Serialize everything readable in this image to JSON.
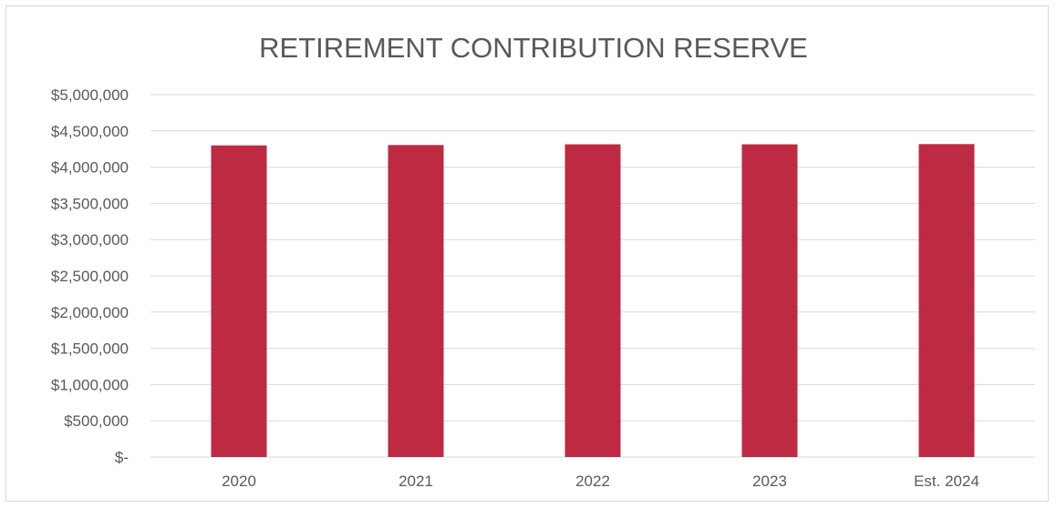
{
  "chart_data": {
    "type": "bar",
    "title": "RETIREMENT CONTRIBUTION RESERVE",
    "categories": [
      "2020",
      "2021",
      "2022",
      "2023",
      "Est. 2024"
    ],
    "series": [
      {
        "values": [
          4300000,
          4305000,
          4315000,
          4315000,
          4318000
        ],
        "color": "#be2a42"
      }
    ],
    "ylim": [
      0,
      5000000
    ],
    "yticks": [
      0,
      500000,
      1000000,
      1500000,
      2000000,
      2500000,
      3000000,
      3500000,
      4000000,
      4500000,
      5000000
    ],
    "ytick_labels": [
      "$-",
      "$500,000",
      "$1,000,000",
      "$1,500,000",
      "$2,000,000",
      "$2,500,000",
      "$3,000,000",
      "$3,500,000",
      "$4,000,000",
      "$4,500,000",
      "$5,000,000"
    ],
    "grid": true,
    "legend": "none",
    "colors": {
      "bar": "#be2a42",
      "grid": "#d9d9d9",
      "text": "#595959"
    }
  }
}
